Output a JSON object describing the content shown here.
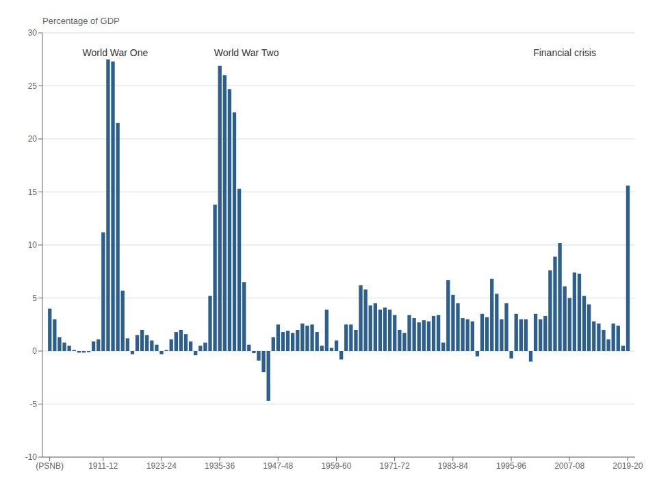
{
  "chart_data": {
    "type": "bar",
    "ylabel": "Percentage of GDP",
    "color": "#2d5f8e",
    "x": [
      1900,
      1901,
      1902,
      1903,
      1904,
      1905,
      1906,
      1907,
      1908,
      1909,
      1910,
      1911,
      1912,
      1913,
      1914,
      1915,
      1916,
      1917,
      1918,
      1919,
      1920,
      1921,
      1922,
      1923,
      1924,
      1925,
      1926,
      1927,
      1928,
      1929,
      1930,
      1931,
      1932,
      1933,
      1934,
      1935,
      1936,
      1937,
      1938,
      1939,
      1940,
      1941,
      1942,
      1943,
      1944,
      1945,
      1946,
      1947,
      1948,
      1949,
      1950,
      1951,
      1952,
      1953,
      1954,
      1955,
      1956,
      1957,
      1958,
      1959,
      1960,
      1961,
      1962,
      1963,
      1964,
      1965,
      1966,
      1967,
      1968,
      1969,
      1970,
      1971,
      1972,
      1973,
      1974,
      1975,
      1976,
      1977,
      1978,
      1979,
      1980,
      1981,
      1982,
      1983,
      1984,
      1985,
      1986,
      1987,
      1988,
      1989,
      1990,
      1991,
      1992,
      1993,
      1994,
      1995,
      1996,
      1997,
      1998,
      1999,
      2000,
      2001,
      2002,
      2003,
      2004,
      2005,
      2006,
      2007,
      2008,
      2009,
      2010,
      2011,
      2012,
      2013,
      2014,
      2015,
      2016,
      2017,
      2018,
      2019
    ],
    "values": [
      4.0,
      3.0,
      1.3,
      0.8,
      0.5,
      0.1,
      -0.15,
      -0.15,
      -0.1,
      0.9,
      1.1,
      11.2,
      27.5,
      27.3,
      21.5,
      5.7,
      1.2,
      -0.3,
      1.5,
      2.0,
      1.5,
      1.0,
      0.6,
      -0.3,
      0.1,
      1.1,
      1.8,
      2.0,
      1.6,
      0.9,
      -0.4,
      0.5,
      0.8,
      5.2,
      13.8,
      26.9,
      26.0,
      24.7,
      22.5,
      15.3,
      6.5,
      0.6,
      -0.2,
      -0.9,
      -2.0,
      -4.7,
      1.3,
      2.5,
      1.8,
      1.9,
      1.7,
      2.0,
      2.6,
      2.4,
      2.5,
      1.8,
      0.5,
      3.9,
      0.3,
      1.0,
      -0.8,
      2.5,
      2.5,
      2.0,
      6.2,
      5.8,
      4.3,
      4.5,
      3.9,
      4.1,
      3.9,
      3.4,
      2.0,
      1.7,
      3.4,
      3.1,
      2.7,
      2.9,
      2.8,
      3.3,
      3.4,
      0.8,
      6.7,
      5.3,
      4.5,
      3.1,
      3.0,
      2.8,
      -0.5,
      3.5,
      3.2,
      6.8,
      5.4,
      3.0,
      4.5,
      -0.7,
      3.5,
      3.0,
      3.0,
      -1.0,
      3.5,
      3.0,
      3.3,
      7.6,
      8.9,
      10.2,
      6.1,
      5.0,
      7.4,
      7.3,
      5.2,
      4.4,
      2.8,
      2.6,
      2.0,
      1.1,
      2.6,
      2.4,
      0.5,
      15.6
    ],
    "xlim": [
      1898.5,
      2020.5
    ],
    "xticks": [
      {
        "value": 1900,
        "label": "(PSNB)"
      },
      {
        "value": 1911,
        "label": "1911-12"
      },
      {
        "value": 1923,
        "label": "1923-24"
      },
      {
        "value": 1935,
        "label": "1935-36"
      },
      {
        "value": 1947,
        "label": "1947-48"
      },
      {
        "value": 1959,
        "label": "1959-60"
      },
      {
        "value": 1971,
        "label": "1971-72"
      },
      {
        "value": 1983,
        "label": "1983-84"
      },
      {
        "value": 1995,
        "label": "1995-96"
      },
      {
        "value": 2007,
        "label": "2007-08"
      },
      {
        "value": 2019,
        "label": "2019-20"
      }
    ],
    "ylim": [
      -10,
      30
    ],
    "yticks": [
      -10,
      -5,
      0,
      5,
      10,
      15,
      20,
      25,
      30
    ],
    "grid": "y",
    "annotations": [
      {
        "text": "World War One",
        "x": 1913.5,
        "y": 28.8
      },
      {
        "text": "World War Two",
        "x": 1940.5,
        "y": 28.8
      },
      {
        "text": "Financial crisis",
        "x": 2006.0,
        "y": 28.8
      }
    ]
  }
}
